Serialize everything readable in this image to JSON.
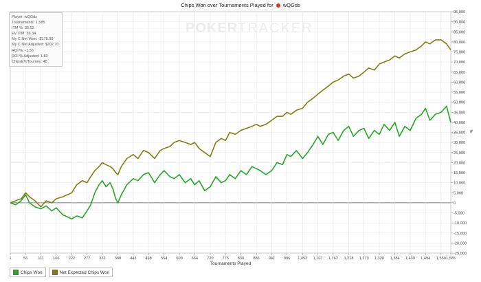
{
  "title": {
    "text": "Chips Won over Tournaments Played for",
    "player": "wQGds"
  },
  "watermark": {
    "part1": "POKER",
    "part2": "TRACKER"
  },
  "stats": [
    "Player: wQGds",
    "Tournaments: 1,585",
    "ITM %: 35.02",
    "EV ITM: 36.34",
    "My C Net Won: -$175.00",
    "My C Net Adjusted: $202.70",
    "ROI %: -1.56",
    "ROI % Adjusted: 1.83",
    "ChipsEV/Tourney: 48"
  ],
  "axis_unit": "#",
  "legend": [
    {
      "label": "Chips Won",
      "color": "#22a822"
    },
    {
      "label": "Net Expected Chips Won",
      "color": "#7f7f10"
    }
  ],
  "chart_data": {
    "type": "line",
    "title": "Chips Won over Tournaments Played for wQGds",
    "xlabel": "Tournaments Played",
    "ylabel": "",
    "xlim": [
      1,
      1585
    ],
    "ylim": [
      -25000,
      95000
    ],
    "grid": true,
    "legend_position": "bottom-left",
    "y_axis_side": "right",
    "x_ticks": [
      "1",
      "56",
      "111",
      "166",
      "222",
      "277",
      "332",
      "388",
      "443",
      "498",
      "554",
      "609",
      "664",
      "720",
      "775",
      "830",
      "886",
      "941",
      "996",
      "1,052",
      "1,107",
      "1,162",
      "1,218",
      "1,273",
      "1,328",
      "1,384",
      "1,439",
      "1,494",
      "1,550",
      "1,585"
    ],
    "x_tick_values": [
      1,
      56,
      111,
      166,
      222,
      277,
      332,
      388,
      443,
      498,
      554,
      609,
      664,
      720,
      775,
      830,
      886,
      941,
      996,
      1052,
      1107,
      1162,
      1218,
      1273,
      1328,
      1384,
      1439,
      1494,
      1550,
      1585
    ],
    "y_ticks": [
      "-25,000",
      "-20,000",
      "-15,000",
      "-10,000",
      "-5,000",
      "0",
      "5,000",
      "10,000",
      "15,000",
      "20,000",
      "25,000",
      "30,000",
      "35,000",
      "40,000",
      "45,000",
      "50,000",
      "55,000",
      "60,000",
      "65,000",
      "70,000",
      "75,000",
      "80,000",
      "85,000",
      "90,000",
      "95,000"
    ],
    "y_tick_values": [
      -25000,
      -20000,
      -15000,
      -10000,
      -5000,
      0,
      5000,
      10000,
      15000,
      20000,
      25000,
      30000,
      35000,
      40000,
      45000,
      50000,
      55000,
      60000,
      65000,
      70000,
      75000,
      80000,
      85000,
      90000,
      95000
    ],
    "series": [
      {
        "name": "Chips Won",
        "color": "#22a822",
        "x": [
          1,
          20,
          40,
          56,
          70,
          90,
          111,
          130,
          150,
          166,
          190,
          222,
          240,
          260,
          277,
          290,
          305,
          320,
          332,
          345,
          360,
          370,
          380,
          388,
          400,
          420,
          443,
          460,
          480,
          498,
          520,
          540,
          554,
          575,
          590,
          609,
          630,
          650,
          664,
          680,
          700,
          720,
          740,
          760,
          775,
          790,
          810,
          830,
          850,
          870,
          886,
          900,
          920,
          941,
          960,
          980,
          996,
          1010,
          1030,
          1052,
          1070,
          1090,
          1107,
          1125,
          1145,
          1162,
          1180,
          1200,
          1218,
          1235,
          1255,
          1273,
          1290,
          1310,
          1328,
          1345,
          1365,
          1384,
          1400,
          1420,
          1439,
          1460,
          1480,
          1494,
          1510,
          1530,
          1550,
          1570,
          1585
        ],
        "y": [
          0,
          -1000,
          1000,
          4000,
          0,
          -2000,
          -3000,
          -1500,
          -4000,
          -2500,
          -6000,
          -8000,
          -6500,
          -7500,
          -4000,
          -1000,
          5000,
          9000,
          11000,
          8000,
          10000,
          7000,
          2000,
          0,
          4000,
          9000,
          12000,
          11000,
          14000,
          15000,
          10000,
          14000,
          16000,
          13000,
          12000,
          14000,
          10000,
          12000,
          9000,
          11000,
          6000,
          8000,
          13000,
          10000,
          11000,
          14000,
          12000,
          16000,
          14000,
          18000,
          17000,
          16000,
          14000,
          16000,
          20000,
          19000,
          24000,
          23000,
          26000,
          22000,
          25000,
          29000,
          33000,
          29000,
          34000,
          35000,
          31000,
          36000,
          38000,
          33000,
          36000,
          37000,
          32000,
          36000,
          34000,
          39000,
          36000,
          40000,
          33000,
          38000,
          36000,
          42000,
          44000,
          47000,
          41000,
          44000,
          45000,
          48000,
          40000
        ]
      },
      {
        "name": "Net Expected Chips Won",
        "color": "#7f7f10",
        "x": [
          1,
          20,
          40,
          56,
          70,
          90,
          111,
          130,
          150,
          166,
          190,
          222,
          240,
          260,
          277,
          290,
          305,
          320,
          332,
          345,
          360,
          370,
          380,
          388,
          400,
          420,
          443,
          460,
          480,
          498,
          520,
          540,
          554,
          575,
          590,
          609,
          630,
          650,
          664,
          680,
          700,
          720,
          740,
          760,
          775,
          790,
          810,
          830,
          850,
          870,
          886,
          900,
          920,
          941,
          960,
          980,
          996,
          1010,
          1030,
          1052,
          1070,
          1090,
          1107,
          1125,
          1145,
          1162,
          1180,
          1200,
          1218,
          1235,
          1255,
          1273,
          1290,
          1310,
          1328,
          1345,
          1365,
          1384,
          1400,
          1420,
          1439,
          1460,
          1480,
          1494,
          1510,
          1530,
          1550,
          1570,
          1585
        ],
        "y": [
          0,
          1000,
          2000,
          5000,
          3000,
          1000,
          -2000,
          1000,
          0,
          2000,
          3000,
          5000,
          9000,
          11000,
          10000,
          13000,
          16000,
          18000,
          20000,
          19000,
          18000,
          17000,
          15000,
          14000,
          18000,
          22000,
          24000,
          22000,
          26000,
          25000,
          22000,
          26000,
          27000,
          28000,
          30000,
          31000,
          30000,
          29000,
          30000,
          27000,
          25000,
          23000,
          30000,
          32000,
          31000,
          35000,
          34000,
          36000,
          37000,
          38000,
          39000,
          38000,
          39000,
          41000,
          43000,
          43000,
          45000,
          44000,
          46000,
          47000,
          50000,
          52000,
          54000,
          56000,
          58000,
          60000,
          61000,
          63000,
          64000,
          62000,
          63000,
          65000,
          67000,
          66000,
          69000,
          70000,
          71000,
          73000,
          72000,
          74000,
          75000,
          76000,
          78000,
          80000,
          79000,
          81000,
          81000,
          79000,
          76000
        ]
      }
    ]
  }
}
